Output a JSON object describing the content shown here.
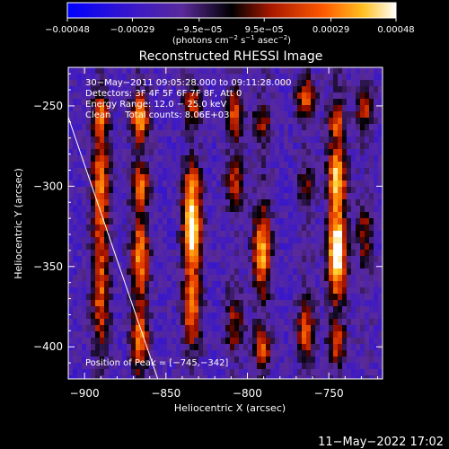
{
  "chart_data": {
    "type": "heatmap",
    "title": "Reconstructed RHESSI Image",
    "xlabel": "Heliocentric X (arcsec)",
    "ylabel": "Heliocentric Y (arcsec)",
    "xlim": [
      -910,
      -717
    ],
    "ylim": [
      -420,
      -226
    ],
    "x_ticks": [
      -900,
      -850,
      -800,
      -750
    ],
    "y_ticks": [
      -400,
      -350,
      -300,
      -250
    ],
    "x_tick_labels": [
      "−900",
      "−850",
      "−800",
      "−750"
    ],
    "y_tick_labels": [
      "−400",
      "−350",
      "−300",
      "−250"
    ],
    "colorbar": {
      "range": [
        -0.00048,
        0.00048
      ],
      "tick_values": [
        -0.00048,
        -0.00029,
        -9.5e-05,
        9.5e-05,
        0.00029,
        0.00048
      ],
      "tick_labels": [
        "−0.00048",
        "−0.00029",
        "−9.5e−05",
        "9.5e−05",
        "0.00029",
        "0.00048"
      ],
      "unit_main": "(photons cm",
      "unit_sup1": "−2",
      "unit_mid1": " s",
      "unit_sup2": "−1",
      "unit_mid2": " asec",
      "unit_sup3": "−2",
      "unit_end": ")"
    },
    "annotations": [
      "30−May−2011 09:05:28.000 to 09:11:28.000",
      "Detectors: 3F 4F 5F 6F 7F 8F, Att 0",
      "Energy Range: 12.0 − 25.0 keV",
      "Clean     Total counts: 8.06E+03"
    ],
    "peak_label": "Position of Peak = [−745,−342]",
    "peak": [
      -745,
      -342
    ],
    "limb_line": [
      [
        -910,
        -257
      ],
      [
        -855,
        -420
      ]
    ],
    "bands": [
      {
        "x": -890,
        "amp": 0.55,
        "segments": [
          [
            -300,
            40,
            0.8
          ],
          [
            -370,
            35,
            0.7
          ],
          [
            -255,
            12,
            0.6
          ]
        ]
      },
      {
        "x": -866,
        "amp": 0.8,
        "segments": [
          [
            -258,
            14,
            1.0
          ],
          [
            -300,
            12,
            0.8
          ],
          [
            -345,
            25,
            0.9
          ],
          [
            -395,
            20,
            0.8
          ]
        ]
      },
      {
        "x": -834,
        "amp": 1.0,
        "segments": [
          [
            -328,
            22,
            1.25
          ],
          [
            -375,
            22,
            0.85
          ],
          [
            -250,
            12,
            0.55
          ],
          [
            -300,
            15,
            0.6
          ]
        ]
      },
      {
        "x": -808,
        "amp": 0.6,
        "segments": [
          [
            -255,
            15,
            0.7
          ],
          [
            -298,
            15,
            0.6
          ],
          [
            -385,
            18,
            0.5
          ]
        ]
      },
      {
        "x": -791,
        "amp": 0.95,
        "segments": [
          [
            -340,
            25,
            0.95
          ],
          [
            -260,
            10,
            0.5
          ],
          [
            -400,
            12,
            0.7
          ]
        ]
      },
      {
        "x": -764,
        "amp": 0.7,
        "segments": [
          [
            -245,
            12,
            0.8
          ],
          [
            -390,
            18,
            0.7
          ],
          [
            -300,
            12,
            0.4
          ]
        ]
      },
      {
        "x": -745,
        "amp": 1.0,
        "segments": [
          [
            -342,
            25,
            1.4
          ],
          [
            -295,
            20,
            1.05
          ],
          [
            -260,
            12,
            0.6
          ],
          [
            -398,
            12,
            0.6
          ]
        ]
      },
      {
        "x": -728,
        "amp": 0.45,
        "segments": [
          [
            -250,
            15,
            0.6
          ],
          [
            -330,
            20,
            0.5
          ]
        ]
      }
    ],
    "grid": false
  },
  "footer": {
    "date_stamp": "11−May−2022 17:02"
  }
}
